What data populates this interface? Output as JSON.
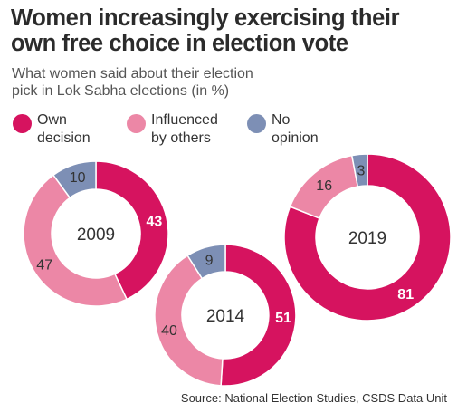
{
  "title": {
    "line1": "Women increasingly exercising their",
    "line2": "own free choice in election vote"
  },
  "subtitle": {
    "line1": "What women said about their election",
    "line2": "pick in Lok Sabha elections (in %)"
  },
  "colors": {
    "own": "#d6135f",
    "influenced": "#ec87a6",
    "no_opinion": "#7d8fb5",
    "center": "#ffffff"
  },
  "legend": [
    {
      "key": "own",
      "line1": "Own",
      "line2": "decision"
    },
    {
      "key": "influenced",
      "line1": "Influenced",
      "line2": "by others"
    },
    {
      "key": "no_opinion",
      "line1": "No",
      "line2": "opinion"
    }
  ],
  "chart_data": {
    "type": "pie",
    "series_names": [
      "Own decision",
      "Influenced by others",
      "No opinion"
    ],
    "charts": [
      {
        "year": "2009",
        "values": [
          43,
          47,
          10
        ]
      },
      {
        "year": "2014",
        "values": [
          51,
          40,
          9
        ]
      },
      {
        "year": "2019",
        "values": [
          81,
          16,
          3
        ]
      }
    ]
  },
  "source": "Source: National Election Studies, CSDS Data Unit"
}
